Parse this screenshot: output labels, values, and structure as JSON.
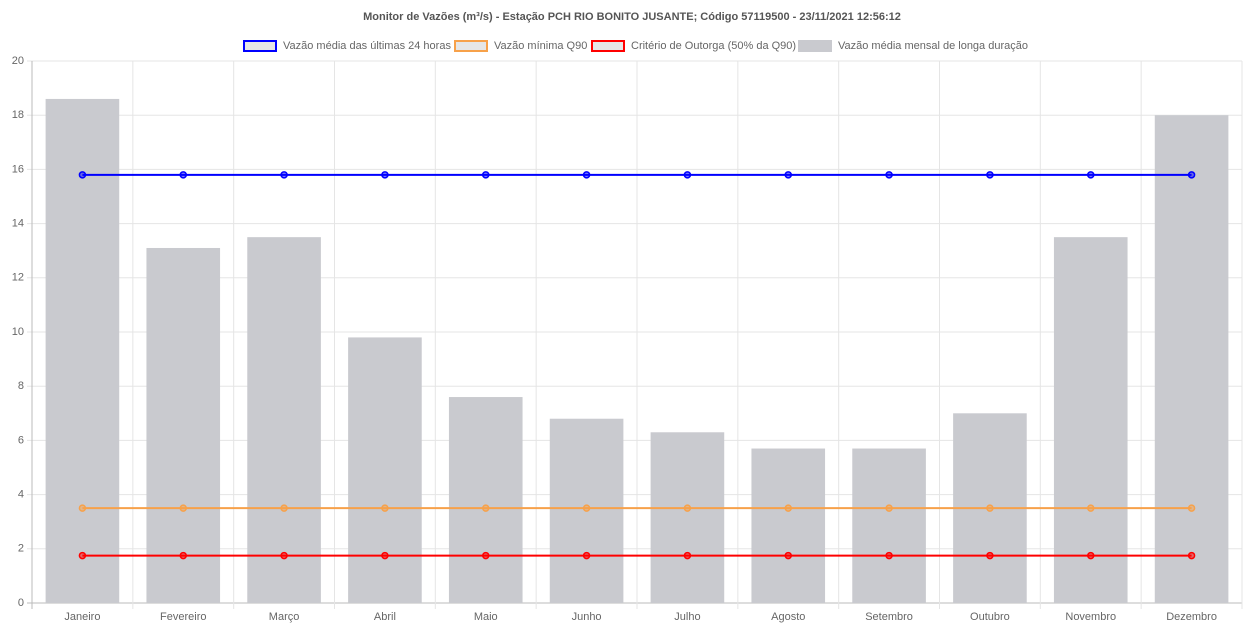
{
  "chart_data": {
    "type": "bar",
    "title": "Monitor de Vazões (m³/s) - Estação PCH RIO BONITO JUSANTE; Código 57119500 -  23/11/2021  12:56:12",
    "categories": [
      "Janeiro",
      "Fevereiro",
      "Março",
      "Abril",
      "Maio",
      "Junho",
      "Julho",
      "Agosto",
      "Setembro",
      "Outubro",
      "Novembro",
      "Dezembro"
    ],
    "series": [
      {
        "name": "Vazão média das últimas 24 horas",
        "type": "line",
        "color": "#0000ff",
        "values": [
          15.8,
          15.8,
          15.8,
          15.8,
          15.8,
          15.8,
          15.8,
          15.8,
          15.8,
          15.8,
          15.8,
          15.8
        ]
      },
      {
        "name": "Vazão mínima Q90",
        "type": "line",
        "color": "#f7a14a",
        "values": [
          3.5,
          3.5,
          3.5,
          3.5,
          3.5,
          3.5,
          3.5,
          3.5,
          3.5,
          3.5,
          3.5,
          3.5
        ]
      },
      {
        "name": "Critério de Outorga (50% da Q90)",
        "type": "line",
        "color": "#ff0000",
        "values": [
          1.75,
          1.75,
          1.75,
          1.75,
          1.75,
          1.75,
          1.75,
          1.75,
          1.75,
          1.75,
          1.75,
          1.75
        ]
      },
      {
        "name": "Vazão média mensal de longa duração",
        "type": "bar",
        "color": "#c9cacf",
        "values": [
          18.6,
          13.1,
          13.5,
          9.8,
          7.6,
          6.8,
          6.3,
          5.7,
          5.7,
          7.0,
          13.5,
          18.0
        ]
      }
    ],
    "ylim": [
      0,
      20
    ],
    "yticks": [
      0,
      2,
      4,
      6,
      8,
      10,
      12,
      14,
      16,
      18,
      20
    ],
    "grid": true,
    "legend": "top"
  }
}
